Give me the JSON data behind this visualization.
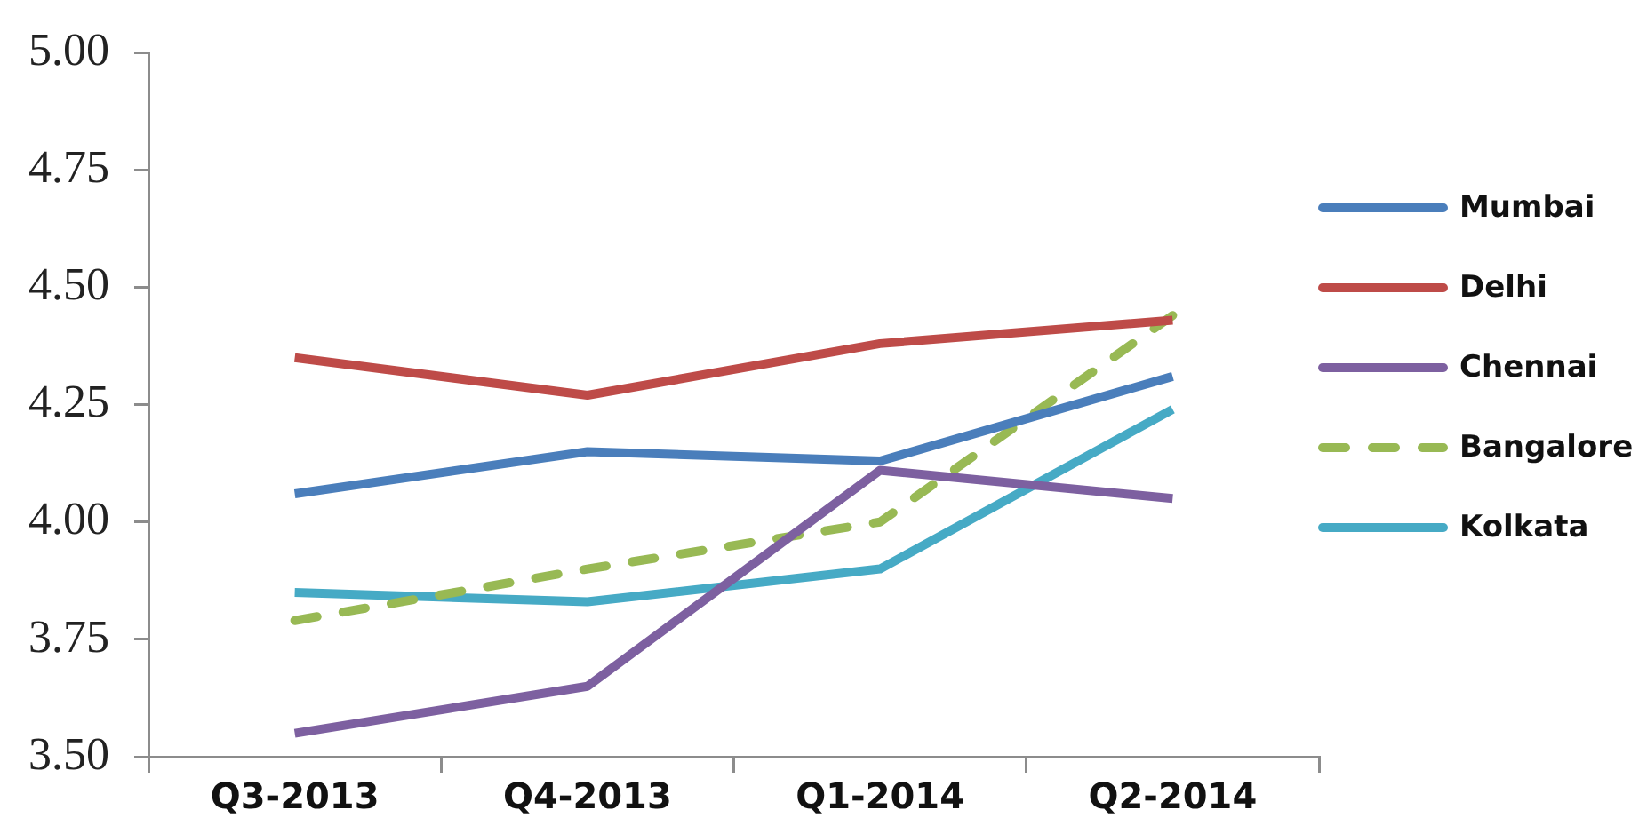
{
  "chart_data": {
    "type": "line",
    "categories": [
      "Q3-2013",
      "Q4-2013",
      "Q1-2014",
      "Q2-2014"
    ],
    "series": [
      {
        "name": "Mumbai",
        "color": "#4a7ebb",
        "values": [
          4.06,
          4.15,
          4.13,
          4.31
        ]
      },
      {
        "name": "Delhi",
        "color": "#be4b48",
        "values": [
          4.35,
          4.27,
          4.38,
          4.43
        ]
      },
      {
        "name": "Chennai",
        "color": "#7d60a0",
        "values": [
          3.55,
          3.65,
          4.11,
          4.05
        ]
      },
      {
        "name": "Bangalore",
        "color": "#98b954",
        "values": [
          3.79,
          3.9,
          4.0,
          4.44
        ],
        "line_style": "dashed"
      },
      {
        "name": "Kolkata",
        "color": "#46aac5",
        "values": [
          3.85,
          3.83,
          3.9,
          4.24
        ]
      }
    ],
    "ylim": [
      3.5,
      5.0
    ],
    "yticks": [
      {
        "value": 3.5,
        "label": "3.50"
      },
      {
        "value": 3.75,
        "label": "3.75"
      },
      {
        "value": 4.0,
        "label": "4.00"
      },
      {
        "value": 4.25,
        "label": "4.25"
      },
      {
        "value": 4.5,
        "label": "4.50"
      },
      {
        "value": 4.75,
        "label": "4.75"
      },
      {
        "value": 5.0,
        "label": "5.00"
      }
    ],
    "grid": false,
    "legend": "right",
    "marker": "none",
    "line_style": "solid"
  }
}
